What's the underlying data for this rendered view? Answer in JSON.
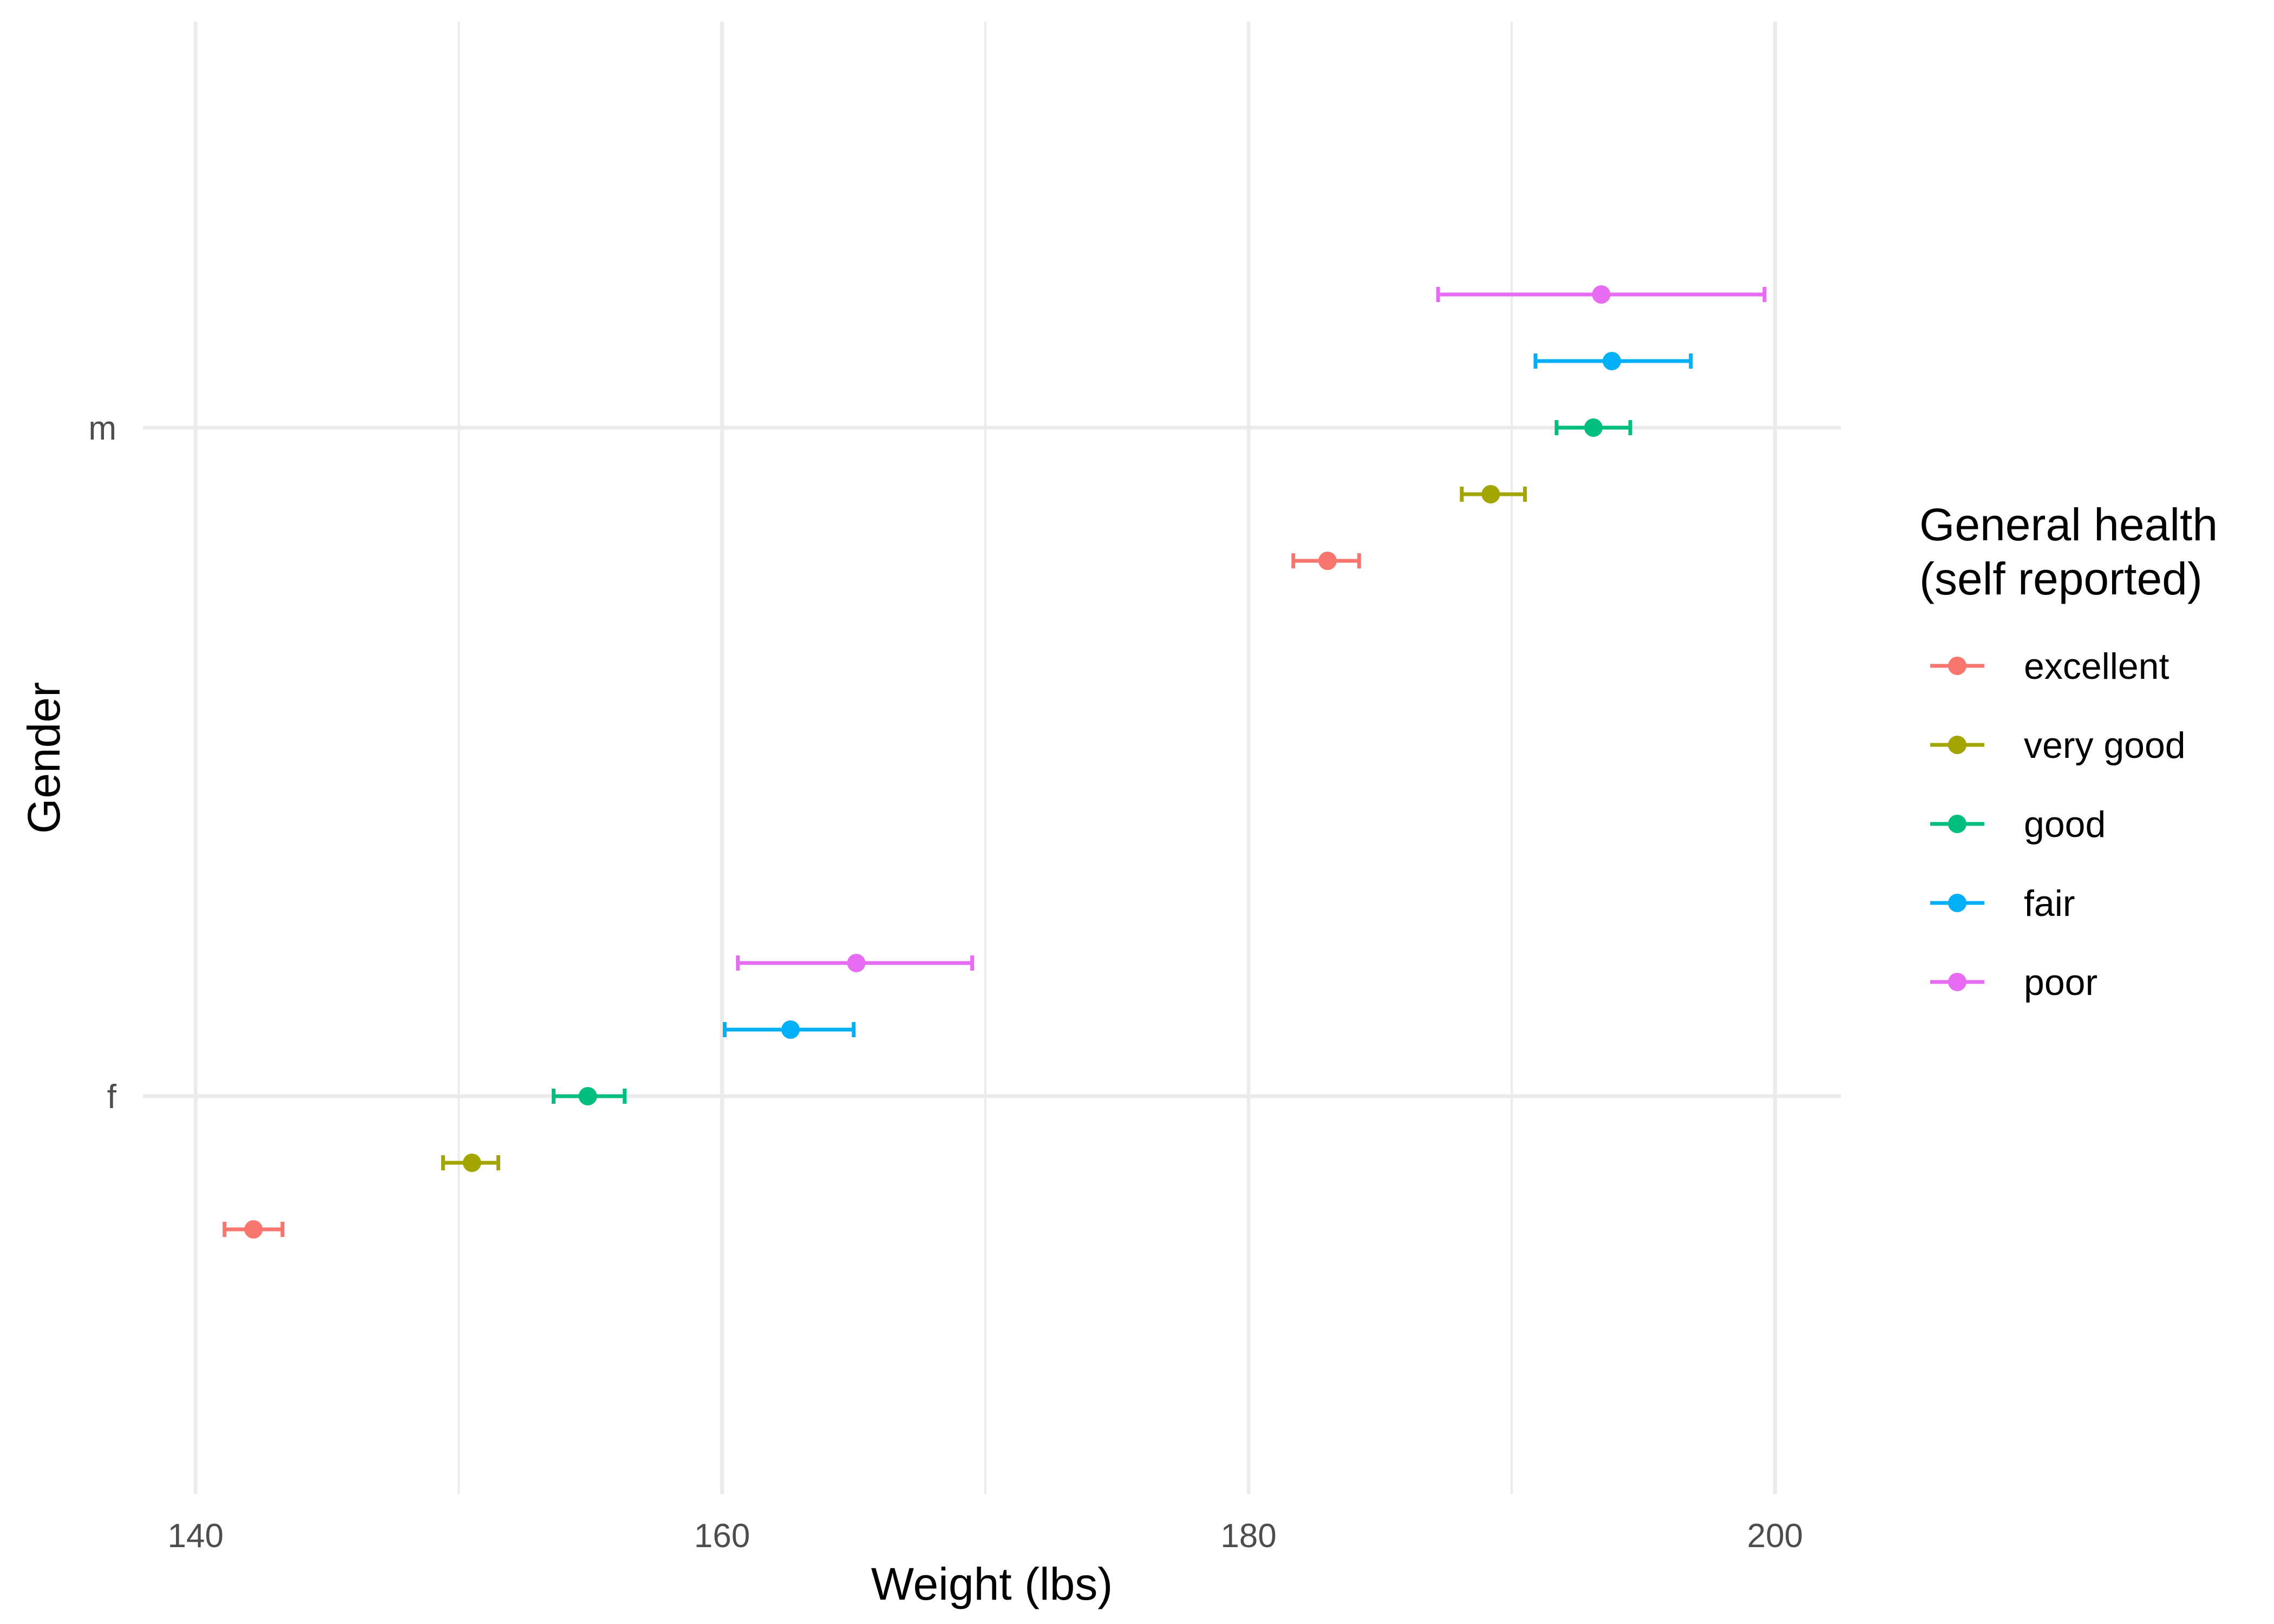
{
  "chart_data": {
    "type": "scatter",
    "xlabel": "Weight (lbs)",
    "ylabel": "Gender",
    "xlim": [
      138,
      202.5
    ],
    "x_ticks": [
      140,
      160,
      180,
      200
    ],
    "y_categories": [
      "f",
      "m"
    ],
    "grid": true,
    "legend": {
      "title_lines": [
        "General health",
        "(self reported)"
      ],
      "placement": "right"
    },
    "series": [
      {
        "name": "excellent",
        "color": "#F8766D",
        "points": [
          {
            "gender": "f",
            "mean": 142.2,
            "lower": 141.1,
            "upper": 143.3
          },
          {
            "gender": "m",
            "mean": 183.0,
            "lower": 181.7,
            "upper": 184.2
          }
        ]
      },
      {
        "name": "very good",
        "color": "#A3A500",
        "points": [
          {
            "gender": "f",
            "mean": 150.5,
            "lower": 149.4,
            "upper": 151.5
          },
          {
            "gender": "m",
            "mean": 189.2,
            "lower": 188.1,
            "upper": 190.5
          }
        ]
      },
      {
        "name": "good",
        "color": "#00BF7D",
        "points": [
          {
            "gender": "f",
            "mean": 154.9,
            "lower": 153.6,
            "upper": 156.3
          },
          {
            "gender": "m",
            "mean": 193.1,
            "lower": 191.7,
            "upper": 194.5
          }
        ]
      },
      {
        "name": "fair",
        "color": "#00B0F6",
        "points": [
          {
            "gender": "f",
            "mean": 162.6,
            "lower": 160.1,
            "upper": 165.0
          },
          {
            "gender": "m",
            "mean": 193.8,
            "lower": 190.9,
            "upper": 196.8
          }
        ]
      },
      {
        "name": "poor",
        "color": "#E76BF3",
        "points": [
          {
            "gender": "f",
            "mean": 165.1,
            "lower": 160.6,
            "upper": 169.5
          },
          {
            "gender": "m",
            "mean": 193.4,
            "lower": 187.2,
            "upper": 199.6
          }
        ]
      }
    ]
  }
}
